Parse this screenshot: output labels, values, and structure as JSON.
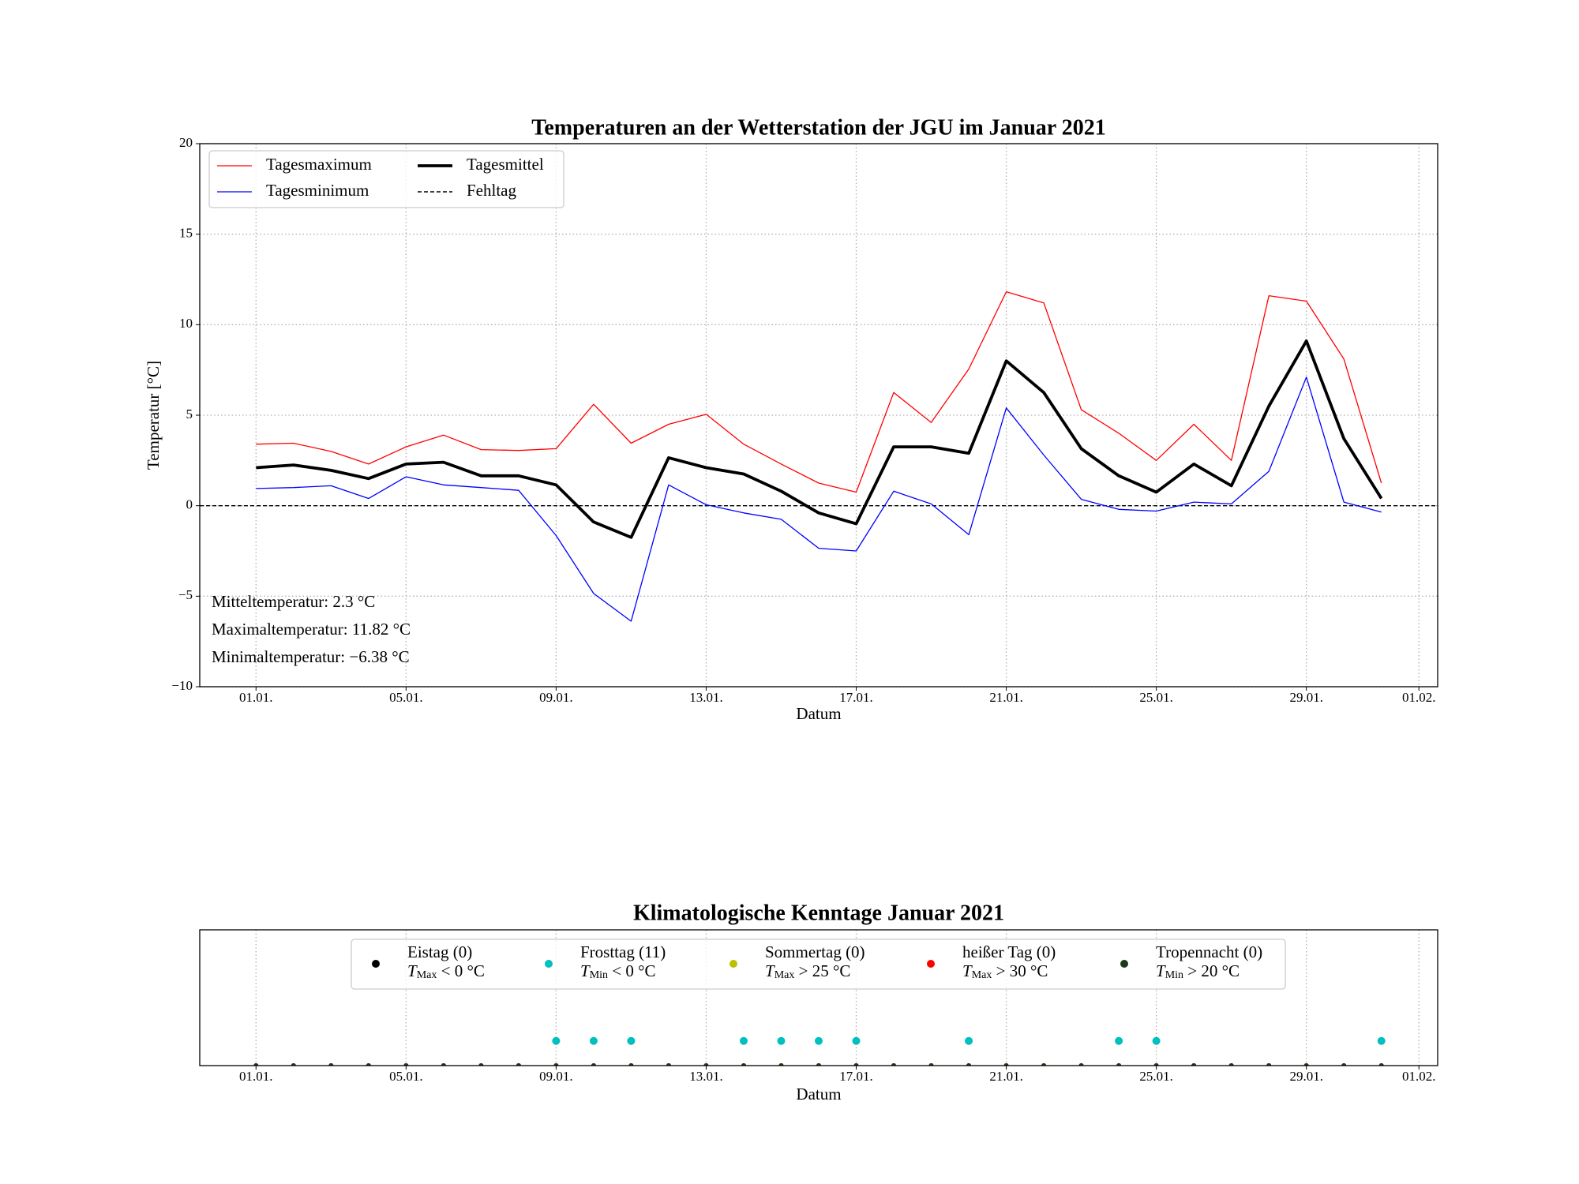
{
  "chart_data": [
    {
      "type": "line",
      "title": "Temperaturen an der Wetterstation der JGU im Januar 2021",
      "xlabel": "Datum",
      "ylabel": "Temperatur [°C]",
      "x": [
        "01.01.",
        "02.01.",
        "03.01.",
        "04.01.",
        "05.01.",
        "06.01.",
        "07.01.",
        "08.01.",
        "09.01.",
        "10.01.",
        "11.01.",
        "12.01.",
        "13.01.",
        "14.01.",
        "15.01.",
        "16.01.",
        "17.01.",
        "18.01.",
        "19.01.",
        "20.01.",
        "21.01.",
        "22.01.",
        "23.01.",
        "24.01.",
        "25.01.",
        "26.01.",
        "27.01.",
        "28.01.",
        "29.01.",
        "30.01.",
        "31.01."
      ],
      "xticks": [
        "01.01.",
        "05.01.",
        "09.01.",
        "13.01.",
        "17.01.",
        "21.01.",
        "25.01.",
        "29.01.",
        "01.02."
      ],
      "ylim": [
        -10,
        20
      ],
      "yticks": [
        {
          "value": -10,
          "label": "−10"
        },
        {
          "value": -5,
          "label": "−5"
        },
        0,
        5,
        10,
        15,
        20
      ],
      "grid": true,
      "legend": "upper left",
      "series": [
        {
          "name": "Tagesmaximum",
          "color": "#ff0000",
          "width": 1.3,
          "values": [
            3.4,
            3.45,
            3.0,
            2.3,
            3.25,
            3.9,
            3.1,
            3.05,
            3.15,
            5.6,
            3.45,
            4.5,
            5.05,
            3.4,
            2.3,
            1.25,
            0.75,
            6.25,
            4.6,
            7.55,
            11.82,
            11.2,
            5.3,
            4.0,
            2.5,
            4.5,
            2.5,
            11.6,
            11.3,
            8.1,
            1.25
          ]
        },
        {
          "name": "Tagesminimum",
          "color": "#0000ff",
          "width": 1.3,
          "values": [
            0.95,
            1.0,
            1.1,
            0.4,
            1.6,
            1.15,
            1.0,
            0.85,
            -1.65,
            -4.85,
            -6.38,
            1.15,
            0.05,
            -0.4,
            -0.75,
            -2.35,
            -2.5,
            0.8,
            0.1,
            -1.6,
            5.4,
            2.8,
            0.35,
            -0.2,
            -0.3,
            0.2,
            0.1,
            1.9,
            7.1,
            0.2,
            -0.35
          ]
        },
        {
          "name": "Tagesmittel",
          "color": "#000000",
          "width": 3.8,
          "values": [
            2.1,
            2.25,
            1.95,
            1.5,
            2.3,
            2.4,
            1.65,
            1.65,
            1.15,
            -0.9,
            -1.75,
            2.65,
            2.1,
            1.75,
            0.8,
            -0.4,
            -1.0,
            3.25,
            3.25,
            2.9,
            8.0,
            6.25,
            3.15,
            1.65,
            0.75,
            2.3,
            1.1,
            5.5,
            9.1,
            3.7,
            0.4
          ]
        }
      ],
      "hlines": [
        {
          "name": "Fehltag",
          "value": 0,
          "color": "#000000",
          "style": "dashed"
        }
      ],
      "annotations": [
        "Mitteltemperatur: 2.3 °C",
        "Maximaltemperatur: 11.82 °C",
        "Minimaltemperatur: −6.38 °C"
      ]
    },
    {
      "type": "scatter",
      "title": "Klimatologische Kenntage Januar 2021",
      "xlabel": "Datum",
      "x": [
        "01.01.",
        "02.01.",
        "03.01.",
        "04.01.",
        "05.01.",
        "06.01.",
        "07.01.",
        "08.01.",
        "09.01.",
        "10.01.",
        "11.01.",
        "12.01.",
        "13.01.",
        "14.01.",
        "15.01.",
        "16.01.",
        "17.01.",
        "18.01.",
        "19.01.",
        "20.01.",
        "21.01.",
        "22.01.",
        "23.01.",
        "24.01.",
        "25.01.",
        "26.01.",
        "27.01.",
        "28.01.",
        "29.01.",
        "30.01.",
        "31.01."
      ],
      "xticks": [
        "01.01.",
        "05.01.",
        "09.01.",
        "13.01.",
        "17.01.",
        "21.01.",
        "25.01.",
        "29.01.",
        "01.02."
      ],
      "ylim": [
        0,
        5.5
      ],
      "grid": true,
      "legend": "upper center",
      "series": [
        {
          "name": "Eistag (0)",
          "cond": {
            "var": "T",
            "sub": "Max",
            "rel": "< 0 °C"
          },
          "color": "#000000",
          "values": [
            0,
            0,
            0,
            0,
            0,
            0,
            0,
            0,
            0,
            0,
            0,
            0,
            0,
            0,
            0,
            0,
            0,
            0,
            0,
            0,
            0,
            0,
            0,
            0,
            0,
            0,
            0,
            0,
            0,
            0,
            0
          ]
        },
        {
          "name": "Frosttag (11)",
          "cond": {
            "var": "T",
            "sub": "Min",
            "rel": "< 0 °C"
          },
          "color": "#00bfbf",
          "values": [
            0,
            0,
            0,
            0,
            0,
            0,
            0,
            0,
            1,
            1,
            1,
            0,
            0,
            1,
            1,
            1,
            1,
            0,
            0,
            1,
            0,
            0,
            0,
            1,
            1,
            0,
            0,
            0,
            0,
            0,
            1
          ]
        },
        {
          "name": "Sommertag (0)",
          "cond": {
            "var": "T",
            "sub": "Max",
            "rel": "> 25 °C"
          },
          "color": "#bfbf00",
          "values": [
            0,
            0,
            0,
            0,
            0,
            0,
            0,
            0,
            0,
            0,
            0,
            0,
            0,
            0,
            0,
            0,
            0,
            0,
            0,
            0,
            0,
            0,
            0,
            0,
            0,
            0,
            0,
            0,
            0,
            0,
            0
          ]
        },
        {
          "name": "heißer Tag (0)",
          "cond": {
            "var": "T",
            "sub": "Max",
            "rel": "> 30 °C"
          },
          "color": "#ff0000",
          "values": [
            0,
            0,
            0,
            0,
            0,
            0,
            0,
            0,
            0,
            0,
            0,
            0,
            0,
            0,
            0,
            0,
            0,
            0,
            0,
            0,
            0,
            0,
            0,
            0,
            0,
            0,
            0,
            0,
            0,
            0,
            0
          ]
        },
        {
          "name": "Tropennacht (0)",
          "cond": {
            "var": "T",
            "sub": "Min",
            "rel": "> 20 °C"
          },
          "color": "#1a3a1a",
          "values": [
            0,
            0,
            0,
            0,
            0,
            0,
            0,
            0,
            0,
            0,
            0,
            0,
            0,
            0,
            0,
            0,
            0,
            0,
            0,
            0,
            0,
            0,
            0,
            0,
            0,
            0,
            0,
            0,
            0,
            0,
            0
          ]
        }
      ]
    }
  ]
}
